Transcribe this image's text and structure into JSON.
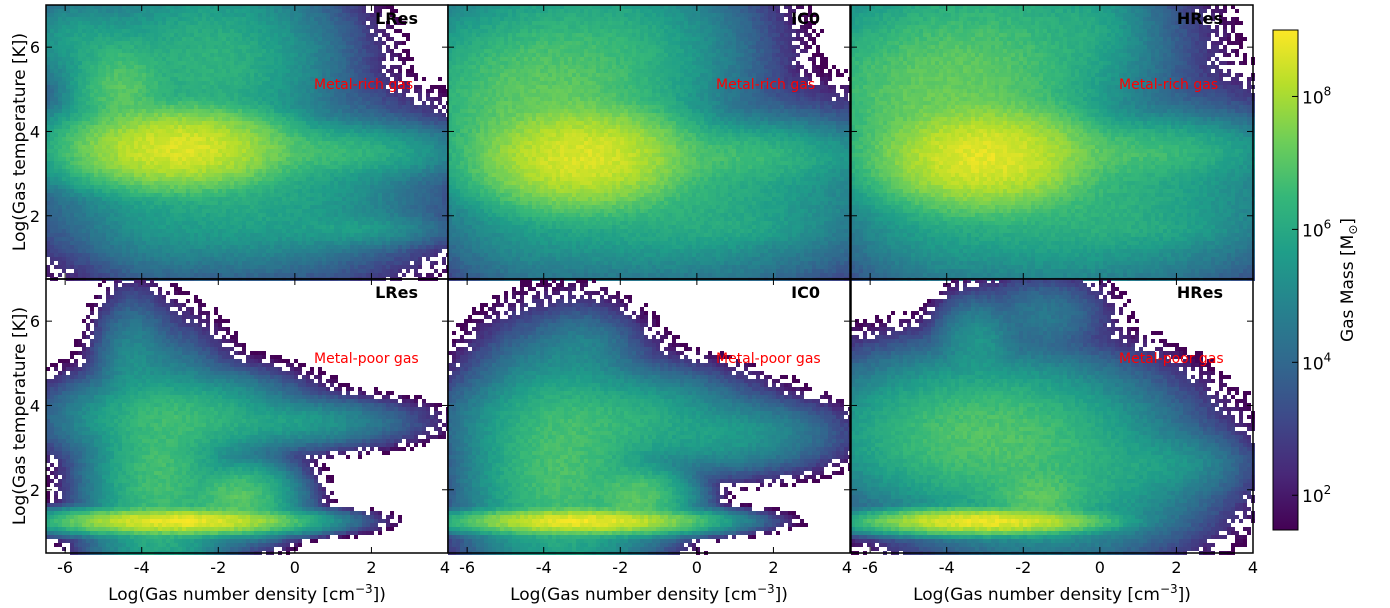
{
  "figure": {
    "colorbar": {
      "label": "Gas Mass [M",
      "label_symbol": "⊙",
      "label_close": "]",
      "scale": "log",
      "range": [
        30,
        1000000000.0
      ],
      "ticks": [
        {
          "base": "10",
          "exp": "2",
          "value": 100
        },
        {
          "base": "10",
          "exp": "4",
          "value": 10000
        },
        {
          "base": "10",
          "exp": "6",
          "value": 1000000
        },
        {
          "base": "10",
          "exp": "8",
          "value": 100000000
        }
      ],
      "colormap": "viridis",
      "colors": [
        "#440154",
        "#482878",
        "#3e4989",
        "#31688e",
        "#26828e",
        "#1f9e89",
        "#35b779",
        "#6ece58",
        "#b5de2b",
        "#fde725"
      ]
    },
    "xlabel_prefix": "Log(Gas number density [cm",
    "xlabel_exp": "−3",
    "xlabel_suffix": "])",
    "ylabel": "Log(Gas temperature [K])",
    "row_labels": [
      "Metal-rich gas",
      "Metal-poor gas"
    ],
    "col_labels": [
      "LRes",
      "IC0",
      "HRes"
    ],
    "label_color": "#ff0000",
    "x_ticks": [
      {
        "v": -6,
        "t": "-6"
      },
      {
        "v": -4,
        "t": "-4"
      },
      {
        "v": -2,
        "t": "-2"
      },
      {
        "v": 0,
        "t": "0"
      },
      {
        "v": 2,
        "t": "2"
      }
    ],
    "x_tick_right_end": {
      "v": 4,
      "t": "4"
    },
    "y_ticks": [
      {
        "v": 2,
        "t": "2"
      },
      {
        "v": 4,
        "t": "4"
      },
      {
        "v": 6,
        "t": "6"
      }
    ]
  },
  "chart_data": [
    {
      "type": "heatmap",
      "title": "LRes",
      "annotation": "Metal-rich gas",
      "xlabel": "Log(Gas number density [cm^-3])",
      "ylabel": "Log(Gas temperature [K])",
      "xlim": [
        -6.5,
        4
      ],
      "ylim": [
        0.5,
        7
      ],
      "colorbar_log": true,
      "peak": {
        "x": -3,
        "y": 3.6
      },
      "blobs": [
        {
          "x": -3,
          "y": 3.6,
          "sx": 1.0,
          "sy": 0.35,
          "w": 8.6
        },
        {
          "x": -4.5,
          "y": 5.0,
          "sx": 0.5,
          "sy": 0.5,
          "w": 7.0
        },
        {
          "x": -2.3,
          "y": 5.6,
          "sx": 1.1,
          "sy": 0.75,
          "w": 6.3
        },
        {
          "x": -5.5,
          "y": 6.1,
          "sx": 0.6,
          "sy": 0.4,
          "w": 5.8
        },
        {
          "x": 0.3,
          "y": 3.5,
          "sx": 1.3,
          "sy": 0.25,
          "w": 6.6
        },
        {
          "x": -1.5,
          "y": 2.8,
          "sx": 1.6,
          "sy": 0.7,
          "w": 6.1
        },
        {
          "x": 1.3,
          "y": 1.7,
          "sx": 0.9,
          "sy": 0.18,
          "w": 5.6
        },
        {
          "x": -1.5,
          "y": 1.8,
          "sx": 1.5,
          "sy": 0.4,
          "w": 5.0
        },
        {
          "x": -3.6,
          "y": 2.2,
          "sx": 0.7,
          "sy": 0.6,
          "w": 5.2
        }
      ]
    },
    {
      "type": "heatmap",
      "title": "IC0",
      "annotation": "Metal-rich gas",
      "xlabel": "Log(Gas number density [cm^-3])",
      "xlim": [
        -6.5,
        4
      ],
      "ylim": [
        0.5,
        7
      ],
      "colorbar_log": true,
      "peak": {
        "x": -3,
        "y": 3.4
      },
      "blobs": [
        {
          "x": -3,
          "y": 3.4,
          "sx": 1.0,
          "sy": 0.45,
          "w": 8.6
        },
        {
          "x": -4.0,
          "y": 4.7,
          "sx": 1.3,
          "sy": 0.85,
          "w": 7.1
        },
        {
          "x": -2.5,
          "y": 5.8,
          "sx": 1.2,
          "sy": 0.75,
          "w": 6.3
        },
        {
          "x": 0.5,
          "y": 3.4,
          "sx": 1.4,
          "sy": 0.3,
          "w": 6.6
        },
        {
          "x": -1.0,
          "y": 2.5,
          "sx": 1.9,
          "sy": 0.7,
          "w": 6.3
        },
        {
          "x": 0.8,
          "y": 1.7,
          "sx": 1.0,
          "sy": 0.18,
          "w": 5.6
        },
        {
          "x": -4.2,
          "y": 2.2,
          "sx": 0.9,
          "sy": 0.7,
          "w": 5.4
        }
      ]
    },
    {
      "type": "heatmap",
      "title": "HRes",
      "annotation": "Metal-rich gas",
      "xlabel": "Log(Gas number density [cm^-3])",
      "xlim": [
        -6.5,
        4
      ],
      "ylim": [
        0.5,
        7
      ],
      "colorbar_log": true,
      "peak": {
        "x": -3,
        "y": 3.4
      },
      "blobs": [
        {
          "x": -3,
          "y": 3.4,
          "sx": 1.0,
          "sy": 0.45,
          "w": 8.7
        },
        {
          "x": -4.0,
          "y": 4.8,
          "sx": 1.4,
          "sy": 0.9,
          "w": 7.2
        },
        {
          "x": -2.6,
          "y": 6.0,
          "sx": 1.3,
          "sy": 0.75,
          "w": 6.4
        },
        {
          "x": -0.4,
          "y": 6.4,
          "sx": 0.6,
          "sy": 0.5,
          "w": 5.8
        },
        {
          "x": 0.5,
          "y": 3.5,
          "sx": 1.4,
          "sy": 0.3,
          "w": 6.7
        },
        {
          "x": -1.0,
          "y": 2.5,
          "sx": 1.9,
          "sy": 0.75,
          "w": 6.4
        },
        {
          "x": 1.0,
          "y": 1.7,
          "sx": 1.1,
          "sy": 0.2,
          "w": 5.7
        },
        {
          "x": -4.0,
          "y": 2.2,
          "sx": 1.0,
          "sy": 0.7,
          "w": 5.6
        }
      ]
    },
    {
      "type": "heatmap",
      "title": "LRes",
      "annotation": "Metal-poor gas",
      "xlabel": "Log(Gas number density [cm^-3])",
      "ylabel": "Log(Gas temperature [K])",
      "xlim": [
        -6.5,
        4
      ],
      "ylim": [
        0.5,
        7
      ],
      "colorbar_log": true,
      "peak": {
        "x": -3.0,
        "y": 1.2
      },
      "blobs": [
        {
          "x": -3.0,
          "y": 1.25,
          "sx": 1.0,
          "sy": 0.1,
          "w": 8.8
        },
        {
          "x": -1.5,
          "y": 1.8,
          "sx": 0.5,
          "sy": 0.3,
          "w": 7.0
        },
        {
          "x": -3.5,
          "y": 2.3,
          "sx": 0.6,
          "sy": 0.9,
          "w": 6.7
        },
        {
          "x": -3.0,
          "y": 3.7,
          "sx": 1.0,
          "sy": 0.35,
          "w": 6.5
        },
        {
          "x": -0.5,
          "y": 3.6,
          "sx": 1.1,
          "sy": 0.2,
          "w": 5.7
        },
        {
          "x": -4.2,
          "y": 4.8,
          "sx": 0.35,
          "sy": 0.6,
          "w": 5.2
        }
      ]
    },
    {
      "type": "heatmap",
      "title": "IC0",
      "annotation": "Metal-poor gas",
      "xlabel": "Log(Gas number density [cm^-3])",
      "xlim": [
        -6.5,
        4
      ],
      "ylim": [
        0.5,
        7
      ],
      "colorbar_log": true,
      "peak": {
        "x": -3.0,
        "y": 1.2
      },
      "blobs": [
        {
          "x": -3.0,
          "y": 1.25,
          "sx": 1.0,
          "sy": 0.1,
          "w": 8.8
        },
        {
          "x": -1.6,
          "y": 1.8,
          "sx": 0.5,
          "sy": 0.3,
          "w": 7.0
        },
        {
          "x": -3.5,
          "y": 2.5,
          "sx": 0.8,
          "sy": 0.9,
          "w": 6.8
        },
        {
          "x": -2.5,
          "y": 3.6,
          "sx": 1.2,
          "sy": 0.4,
          "w": 6.4
        },
        {
          "x": 0.5,
          "y": 3.3,
          "sx": 1.0,
          "sy": 0.3,
          "w": 5.6
        },
        {
          "x": -3.0,
          "y": 5.3,
          "sx": 0.5,
          "sy": 0.35,
          "w": 4.8
        }
      ]
    },
    {
      "type": "heatmap",
      "title": "HRes",
      "annotation": "Metal-poor gas",
      "xlabel": "Log(Gas number density [cm^-3])",
      "xlim": [
        -6.5,
        4
      ],
      "ylim": [
        0.5,
        7
      ],
      "colorbar_log": true,
      "peak": {
        "x": -3.0,
        "y": 1.2
      },
      "blobs": [
        {
          "x": -3.0,
          "y": 1.25,
          "sx": 1.0,
          "sy": 0.1,
          "w": 8.8
        },
        {
          "x": -1.6,
          "y": 1.8,
          "sx": 0.5,
          "sy": 0.3,
          "w": 7.0
        },
        {
          "x": -3.0,
          "y": 3.3,
          "sx": 1.4,
          "sy": 0.6,
          "w": 6.9
        },
        {
          "x": -1.5,
          "y": 2.3,
          "sx": 1.3,
          "sy": 0.6,
          "w": 6.4
        },
        {
          "x": 1.3,
          "y": 2.6,
          "sx": 0.8,
          "sy": 0.3,
          "w": 5.6
        },
        {
          "x": -3.2,
          "y": 5.4,
          "sx": 0.4,
          "sy": 0.4,
          "w": 5.4
        },
        {
          "x": -1.5,
          "y": 6.1,
          "sx": 0.6,
          "sy": 0.35,
          "w": 4.5
        }
      ]
    }
  ]
}
